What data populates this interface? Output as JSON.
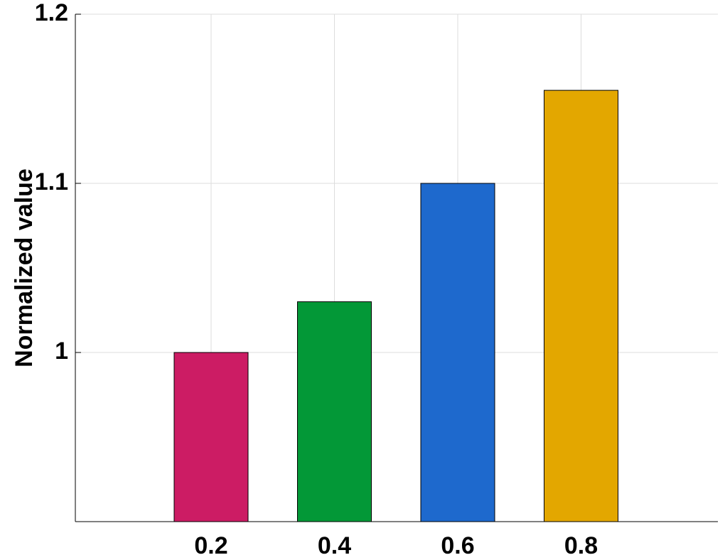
{
  "chart_data": {
    "type": "bar",
    "ylabel": "Normalized value",
    "categories": [
      "0.2",
      "0.4",
      "0.6",
      "0.8"
    ],
    "values": [
      1.0,
      1.03,
      1.1,
      1.155
    ],
    "colors": [
      "#cc1c64",
      "#039837",
      "#1e69cd",
      "#e3a700"
    ],
    "ylim": [
      0.9,
      1.2
    ],
    "yticks": [
      1,
      1.1,
      1.2
    ],
    "grid": true
  }
}
